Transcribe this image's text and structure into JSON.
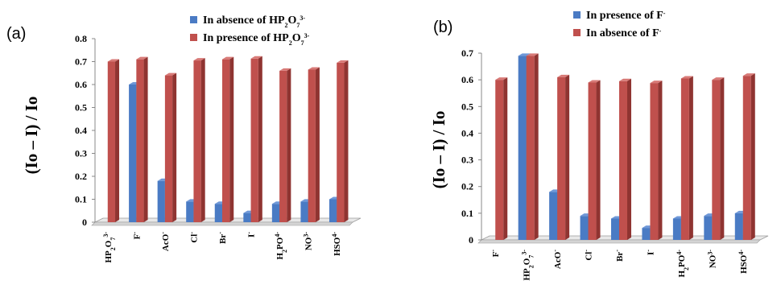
{
  "colors": {
    "blue": "#4a7bc4",
    "blue_dark": "#2f5a9a",
    "blue_light": "#6f98d8",
    "red": "#c0504d",
    "red_dark": "#8f3431",
    "red_light": "#d87a77",
    "floor": "#e8e8e8",
    "floor_edge": "#9a9a9a"
  },
  "chart_data": [
    {
      "type": "bar",
      "panel_label": "(a)",
      "ylabel": "(Io – I) / Io",
      "ylim": [
        0,
        0.8
      ],
      "yticks": [
        "0",
        "0.1",
        "0.2",
        "0.3",
        "0.4",
        "0.5",
        "0.6",
        "0.7",
        "0.8"
      ],
      "categories": [
        "HP2O7 3-",
        "F-",
        "AcO-",
        "Cl-",
        "Br-",
        "I-",
        "H2PO4-",
        "NO3-",
        "HSO4-"
      ],
      "series": [
        {
          "name": "In absence of HP2O7 3-",
          "color_key": "blue",
          "values": [
            0.0,
            0.6,
            0.18,
            0.09,
            0.08,
            0.04,
            0.08,
            0.09,
            0.1
          ]
        },
        {
          "name": "In presence of HP2O7 3-",
          "color_key": "red",
          "values": [
            0.7,
            0.71,
            0.64,
            0.705,
            0.71,
            0.713,
            0.66,
            0.665,
            0.695
          ]
        }
      ],
      "legend_position": "top-right",
      "grid": false
    },
    {
      "type": "bar",
      "panel_label": "(b)",
      "ylabel": "(Io – I) / Io",
      "ylim": [
        0,
        0.7
      ],
      "yticks": [
        "0",
        "0.1",
        "0.2",
        "0.3",
        "0.4",
        "0.5",
        "0.6",
        "0.7"
      ],
      "categories": [
        "F-",
        "HP2O7 3-",
        "AcO-",
        "Cl-",
        "Br-",
        "I-",
        "H2PO4-",
        "NO3-",
        "HSO4-"
      ],
      "series": [
        {
          "name": "In presence of F-",
          "color_key": "blue",
          "values": [
            0.0,
            0.69,
            0.18,
            0.09,
            0.08,
            0.045,
            0.08,
            0.09,
            0.1
          ]
        },
        {
          "name": "In absence of F-",
          "color_key": "red",
          "values": [
            0.6,
            0.69,
            0.61,
            0.59,
            0.595,
            0.588,
            0.605,
            0.6,
            0.615
          ]
        }
      ],
      "legend_position": "top-right",
      "grid": false
    }
  ]
}
